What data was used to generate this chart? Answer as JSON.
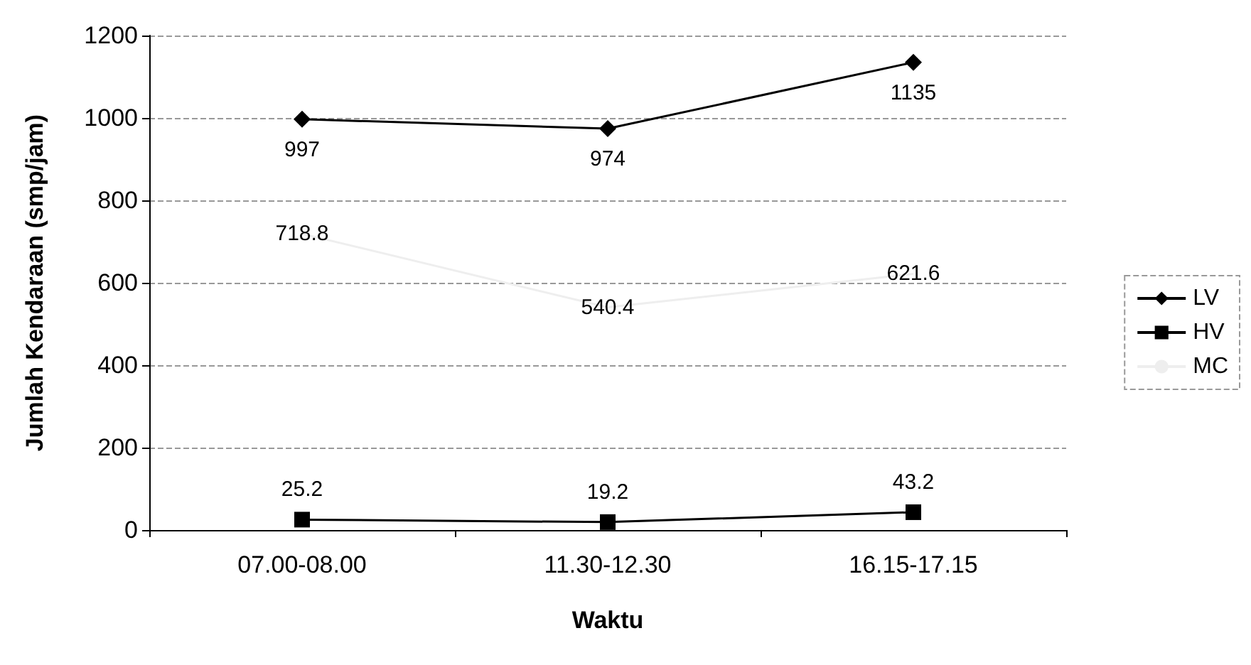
{
  "chart_data": {
    "type": "line",
    "xlabel": "Waktu",
    "ylabel": "Jumlah Kendaraan (smp/jam)",
    "categories": [
      "07.00-08.00",
      "11.30-12.30",
      "16.15-17.15"
    ],
    "series": [
      {
        "name": "LV",
        "color": "#000000",
        "marker": "diamond",
        "values": [
          997,
          974,
          1135
        ]
      },
      {
        "name": "HV",
        "color": "#000000",
        "marker": "square",
        "values": [
          25.2,
          19.2,
          43.2
        ]
      },
      {
        "name": "MC",
        "color": "#eeeeee",
        "marker": "none",
        "values": [
          718.8,
          540.4,
          621.6
        ]
      }
    ],
    "ylim": [
      0,
      1200
    ],
    "yticks": [
      0,
      200,
      400,
      600,
      800,
      1000,
      1200
    ],
    "grid": "y",
    "legend": "right",
    "data_labels": true
  }
}
